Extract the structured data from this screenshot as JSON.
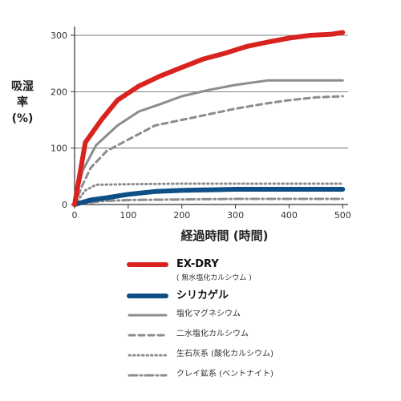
{
  "chart_data": {
    "type": "line",
    "ylabel": [
      "吸湿率",
      "(%)"
    ],
    "xlabel": "経過時間 (時間)",
    "xlim": [
      0,
      510
    ],
    "ylim": [
      0,
      310
    ],
    "x_ticks": [
      0,
      100,
      200,
      300,
      400,
      500
    ],
    "y_ticks": [
      0,
      100,
      200,
      300
    ],
    "grid": "horizontal",
    "legend_position": "bottom",
    "series": [
      {
        "name": "EX-DRY",
        "sub": "( 無水塩化カルシウム )",
        "color": "#d9231f",
        "style": "solid",
        "width": 6,
        "points": [
          [
            0,
            0
          ],
          [
            20,
            110
          ],
          [
            50,
            150
          ],
          [
            80,
            185
          ],
          [
            120,
            210
          ],
          [
            160,
            228
          ],
          [
            200,
            243
          ],
          [
            240,
            258
          ],
          [
            280,
            268
          ],
          [
            320,
            280
          ],
          [
            360,
            288
          ],
          [
            400,
            295
          ],
          [
            440,
            300
          ],
          [
            480,
            302
          ],
          [
            500,
            305
          ]
        ]
      },
      {
        "name": "シリカゲル",
        "sub": "",
        "color": "#0d4f86",
        "style": "solid",
        "width": 6,
        "points": [
          [
            0,
            0
          ],
          [
            30,
            8
          ],
          [
            60,
            12
          ],
          [
            100,
            18
          ],
          [
            150,
            23
          ],
          [
            200,
            25
          ],
          [
            300,
            27
          ],
          [
            400,
            27
          ],
          [
            500,
            27
          ]
        ]
      },
      {
        "name": "塩化マグネシウム",
        "sub": "",
        "color": "#8c8c8c",
        "style": "solid",
        "width": 3,
        "points": [
          [
            0,
            0
          ],
          [
            15,
            60
          ],
          [
            40,
            105
          ],
          [
            80,
            140
          ],
          [
            120,
            165
          ],
          [
            160,
            178
          ],
          [
            200,
            192
          ],
          [
            250,
            203
          ],
          [
            300,
            212
          ],
          [
            360,
            220
          ],
          [
            400,
            220
          ],
          [
            500,
            220
          ]
        ]
      },
      {
        "name": "二水塩化カルシウム",
        "sub": "",
        "color": "#8c8c8c",
        "style": "dash",
        "width": 3,
        "points": [
          [
            0,
            0
          ],
          [
            15,
            35
          ],
          [
            30,
            65
          ],
          [
            60,
            95
          ],
          [
            100,
            115
          ],
          [
            150,
            140
          ],
          [
            200,
            150
          ],
          [
            250,
            160
          ],
          [
            300,
            170
          ],
          [
            350,
            178
          ],
          [
            400,
            185
          ],
          [
            450,
            190
          ],
          [
            500,
            192
          ]
        ]
      },
      {
        "name": "生石灰系 (酸化カルシウム)",
        "sub": "",
        "color": "#8c8c8c",
        "style": "dot",
        "width": 3,
        "points": [
          [
            0,
            0
          ],
          [
            20,
            25
          ],
          [
            40,
            35
          ],
          [
            100,
            36
          ],
          [
            200,
            37
          ],
          [
            300,
            37
          ],
          [
            400,
            37
          ],
          [
            500,
            37
          ]
        ]
      },
      {
        "name": "クレイ鉱系 (ベントナイト)",
        "sub": "",
        "color": "#8c8c8c",
        "style": "dashdot",
        "width": 3,
        "points": [
          [
            0,
            0
          ],
          [
            50,
            6
          ],
          [
            100,
            8
          ],
          [
            200,
            9
          ],
          [
            300,
            10
          ],
          [
            400,
            10
          ],
          [
            500,
            10
          ]
        ]
      }
    ]
  }
}
